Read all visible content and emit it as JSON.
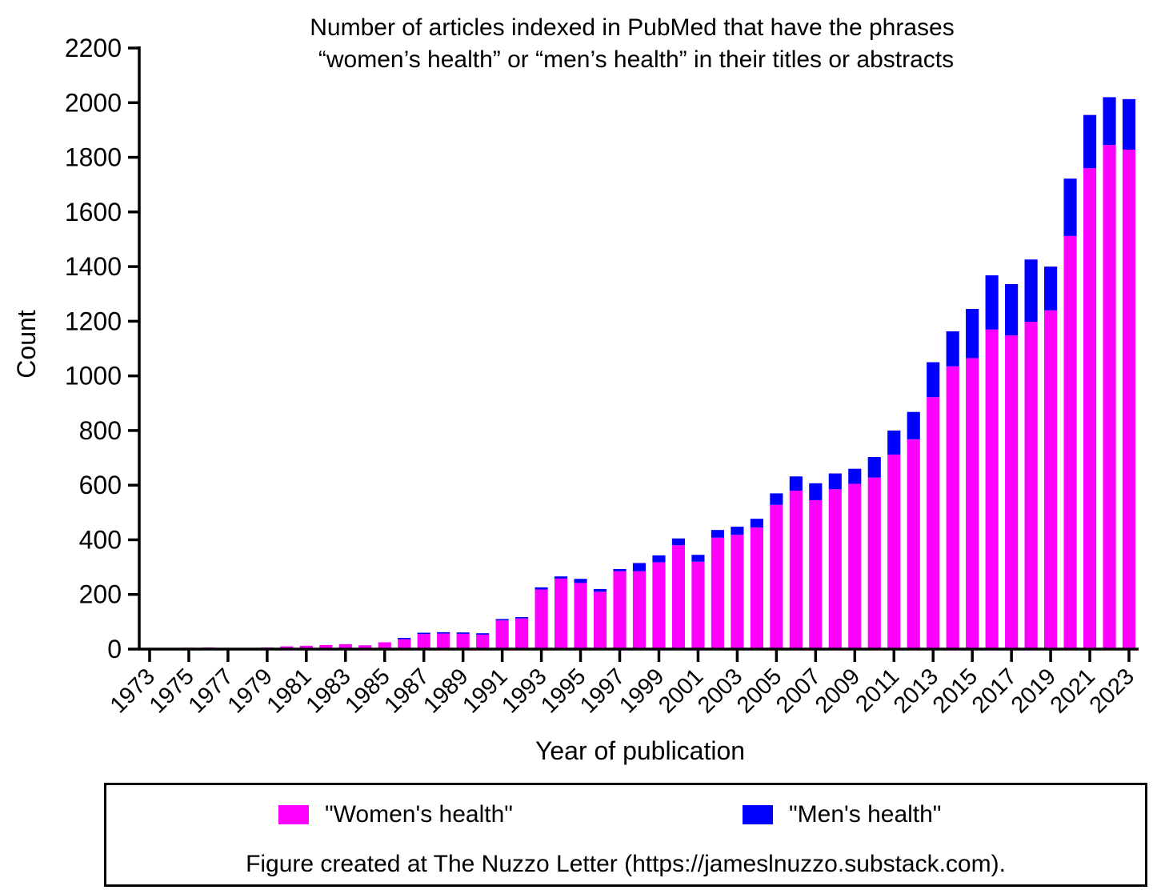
{
  "chart_data": {
    "type": "bar",
    "stacked": true,
    "title_lines": [
      "Number of articles indexed in PubMed that have the phrases",
      "“women’s health” or “men’s health” in their titles or abstracts"
    ],
    "xlabel": "Year of publication",
    "ylabel": "Count",
    "ylim": [
      0,
      2200
    ],
    "yticks": [
      0,
      200,
      400,
      600,
      800,
      1000,
      1200,
      1400,
      1600,
      1800,
      2000,
      2200
    ],
    "categories": [
      "1973",
      "1974",
      "1975",
      "1976",
      "1977",
      "1978",
      "1979",
      "1980",
      "1981",
      "1982",
      "1983",
      "1984",
      "1985",
      "1986",
      "1987",
      "1988",
      "1989",
      "1990",
      "1991",
      "1992",
      "1993",
      "1994",
      "1995",
      "1996",
      "1997",
      "1998",
      "1999",
      "2000",
      "2001",
      "2002",
      "2003",
      "2004",
      "2005",
      "2006",
      "2007",
      "2008",
      "2009",
      "2010",
      "2011",
      "2012",
      "2013",
      "2014",
      "2015",
      "2016",
      "2017",
      "2018",
      "2019",
      "2020",
      "2021",
      "2022",
      "2023"
    ],
    "xtick_labels": [
      "1973",
      "1975",
      "1977",
      "1979",
      "1981",
      "1983",
      "1985",
      "1987",
      "1989",
      "1991",
      "1993",
      "1995",
      "1997",
      "1999",
      "2001",
      "2003",
      "2005",
      "2007",
      "2009",
      "2011",
      "2013",
      "2015",
      "2017",
      "2019",
      "2021",
      "2023"
    ],
    "series": [
      {
        "name": "\"Women's health\"",
        "color": "#ff00ff",
        "values": [
          2,
          3,
          5,
          6,
          3,
          3,
          6,
          10,
          12,
          15,
          18,
          14,
          25,
          36,
          55,
          57,
          56,
          53,
          105,
          112,
          218,
          258,
          242,
          210,
          285,
          285,
          318,
          380,
          320,
          408,
          418,
          445,
          528,
          580,
          545,
          585,
          605,
          628,
          712,
          768,
          922,
          1035,
          1065,
          1170,
          1148,
          1198,
          1240,
          1512,
          1760,
          1845,
          1828
        ]
      },
      {
        "name": "\"Men's health\"",
        "color": "#0000ff",
        "values": [
          0,
          0,
          0,
          0,
          0,
          0,
          0,
          0,
          0,
          0,
          0,
          0,
          0,
          5,
          5,
          5,
          5,
          5,
          5,
          5,
          8,
          8,
          15,
          10,
          8,
          30,
          25,
          25,
          25,
          28,
          30,
          32,
          42,
          52,
          62,
          58,
          55,
          75,
          88,
          100,
          128,
          128,
          180,
          198,
          188,
          228,
          160,
          210,
          195,
          175,
          185
        ]
      }
    ],
    "legend_position": "bottom",
    "grid": false
  },
  "legend": {
    "women_label": "\"Women's health\"",
    "men_label": "\"Men's health\"",
    "women_color": "#ff00ff",
    "men_color": "#0000ff",
    "note": "Figure created at The Nuzzo Letter (https://jameslnuzzo.substack.com)."
  }
}
